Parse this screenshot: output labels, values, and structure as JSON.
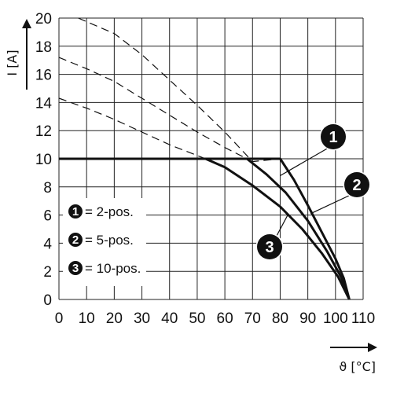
{
  "chart_data": {
    "type": "line",
    "xlabel": "ϑ [°C]",
    "ylabel": "I [A]",
    "xlim": [
      0,
      110
    ],
    "ylim": [
      0,
      20
    ],
    "x_ticks": [
      "0",
      "10",
      "20",
      "30",
      "40",
      "50",
      "60",
      "70",
      "80",
      "90",
      "100",
      "110"
    ],
    "y_ticks": [
      "0",
      "2",
      "4",
      "6",
      "8",
      "10",
      "12",
      "14",
      "16",
      "18",
      "20"
    ],
    "grid": true,
    "series": [
      {
        "marker": "1",
        "name": "2-pos.",
        "solid": [
          [
            0,
            10
          ],
          [
            80,
            10
          ],
          [
            85,
            8.5
          ],
          [
            90,
            6.7
          ],
          [
            95,
            4.8
          ],
          [
            100,
            2.9
          ],
          [
            103,
            1.5
          ],
          [
            105,
            0
          ]
        ],
        "dashed": [
          [
            7,
            20
          ],
          [
            20,
            18.9
          ],
          [
            30,
            17.4
          ],
          [
            40,
            15.6
          ],
          [
            50,
            13.8
          ],
          [
            60,
            11.9
          ],
          [
            70,
            9.8
          ],
          [
            80,
            10
          ]
        ]
      },
      {
        "marker": "2",
        "name": "5-pos.",
        "solid": [
          [
            0,
            10
          ],
          [
            68,
            10
          ],
          [
            75,
            8.9
          ],
          [
            82,
            7.6
          ],
          [
            90,
            5.6
          ],
          [
            97,
            3.4
          ],
          [
            102,
            1.6
          ],
          [
            105,
            0
          ]
        ],
        "dashed": [
          [
            0,
            17.2
          ],
          [
            10,
            16.4
          ],
          [
            20,
            15.5
          ],
          [
            30,
            14.3
          ],
          [
            40,
            13.1
          ],
          [
            50,
            11.9
          ],
          [
            60,
            10.8
          ],
          [
            68,
            10
          ]
        ]
      },
      {
        "marker": "3",
        "name": "10-pos.",
        "solid": [
          [
            0,
            10
          ],
          [
            53,
            10
          ],
          [
            60,
            9.4
          ],
          [
            70,
            8.1
          ],
          [
            80,
            6.6
          ],
          [
            88,
            5
          ],
          [
            95,
            3.3
          ],
          [
            101,
            1.6
          ],
          [
            105,
            0
          ]
        ],
        "dashed": [
          [
            0,
            14.3
          ],
          [
            10,
            13.6
          ],
          [
            20,
            12.8
          ],
          [
            30,
            11.9
          ],
          [
            40,
            11
          ],
          [
            53,
            10
          ]
        ]
      }
    ],
    "legend_title": "",
    "legend": [
      {
        "marker": "1",
        "label": "= 2-pos."
      },
      {
        "marker": "2",
        "label": "= 5-pos."
      },
      {
        "marker": "3",
        "label": "= 10-pos."
      }
    ]
  },
  "colors": {
    "line": "#111111",
    "grid": "#222222",
    "badge": "#111111"
  }
}
